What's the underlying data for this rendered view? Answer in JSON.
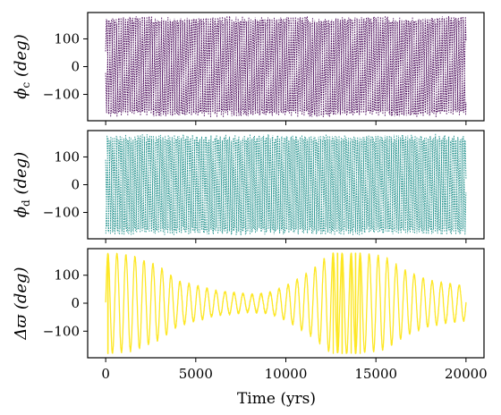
{
  "chart_data": [
    {
      "type": "scatter",
      "panel": "top",
      "ylabel": "ϕc (deg)",
      "ylabel_symbol": "ϕ",
      "ylabel_sub": "c",
      "ylabel_unit": "(deg)",
      "ylim": [
        -195,
        195
      ],
      "yticks": [
        100,
        0,
        -100
      ],
      "ytick_labels": [
        "100",
        "0",
        "−100"
      ],
      "xlim": [
        -1000,
        21000
      ],
      "color": "#440154",
      "series": [
        {
          "x_range": [
            0,
            20000
          ],
          "y_range": [
            -180,
            180
          ],
          "pattern": "circulating",
          "samples": [
            [
              0,
              170
            ],
            [
              1000,
              -120
            ],
            [
              2000,
              60
            ],
            [
              3000,
              -170
            ],
            [
              4000,
              110
            ],
            [
              5000,
              -40
            ],
            [
              6000,
              165
            ],
            [
              7000,
              -95
            ],
            [
              8000,
              20
            ],
            [
              9000,
              -160
            ],
            [
              10000,
              140
            ],
            [
              11000,
              -60
            ],
            [
              12000,
              175
            ],
            [
              13000,
              -130
            ],
            [
              14000,
              80
            ],
            [
              15000,
              -10
            ],
            [
              16000,
              150
            ],
            [
              17000,
              -150
            ],
            [
              18000,
              40
            ],
            [
              19000,
              -85
            ],
            [
              20000,
              120
            ]
          ]
        }
      ]
    },
    {
      "type": "scatter",
      "panel": "middle",
      "ylabel": "ϕd (deg)",
      "ylabel_symbol": "ϕ",
      "ylabel_sub": "d",
      "ylabel_unit": "(deg)",
      "ylim": [
        -195,
        195
      ],
      "yticks": [
        100,
        0,
        -100
      ],
      "ytick_labels": [
        "100",
        "0",
        "−100"
      ],
      "xlim": [
        -1000,
        21000
      ],
      "color": "#21918c",
      "series": [
        {
          "x_range": [
            0,
            20000
          ],
          "y_range": [
            -180,
            180
          ],
          "pattern": "circulating",
          "samples": [
            [
              0,
              -170
            ],
            [
              1000,
              130
            ],
            [
              2000,
              -50
            ],
            [
              3000,
              175
            ],
            [
              4000,
              -100
            ],
            [
              5000,
              30
            ],
            [
              6000,
              -160
            ],
            [
              7000,
              90
            ],
            [
              8000,
              -20
            ],
            [
              9000,
              150
            ],
            [
              10000,
              -140
            ],
            [
              11000,
              60
            ],
            [
              12000,
              -175
            ],
            [
              13000,
              120
            ],
            [
              14000,
              -70
            ],
            [
              15000,
              10
            ],
            [
              16000,
              -150
            ],
            [
              17000,
              155
            ],
            [
              18000,
              -40
            ],
            [
              19000,
              95
            ],
            [
              20000,
              -110
            ]
          ]
        }
      ]
    },
    {
      "type": "scatter",
      "panel": "bottom",
      "ylabel": "Δϖ (deg)",
      "ylabel_symbol": "Δϖ",
      "ylabel_unit": "(deg)",
      "xlabel": "Time (yrs)",
      "ylim": [
        -195,
        195
      ],
      "yticks": [
        100,
        0,
        -100
      ],
      "ytick_labels": [
        "100",
        "0",
        "−100"
      ],
      "xlim": [
        -1000,
        21000
      ],
      "xticks": [
        0,
        5000,
        10000,
        15000,
        20000
      ],
      "xtick_labels": [
        "0",
        "5000",
        "10000",
        "15000",
        "20000"
      ],
      "color": "#fde725",
      "series": [
        {
          "x_range": [
            0,
            20000
          ],
          "y_range": [
            -180,
            180
          ],
          "pattern": "libration with amplitude modulation",
          "center": 0,
          "period_yrs": 500,
          "amplitude_envelope": [
            [
              0,
              180
            ],
            [
              1500,
              170
            ],
            [
              3000,
              130
            ],
            [
              4000,
              80
            ],
            [
              6000,
              45
            ],
            [
              8000,
              30
            ],
            [
              9000,
              35
            ],
            [
              10000,
              60
            ],
            [
              11500,
              120
            ],
            [
              12500,
              180
            ],
            [
              14000,
              180
            ],
            [
              15500,
              165
            ],
            [
              16500,
              120
            ],
            [
              18000,
              80
            ],
            [
              20000,
              60
            ]
          ]
        }
      ]
    }
  ]
}
